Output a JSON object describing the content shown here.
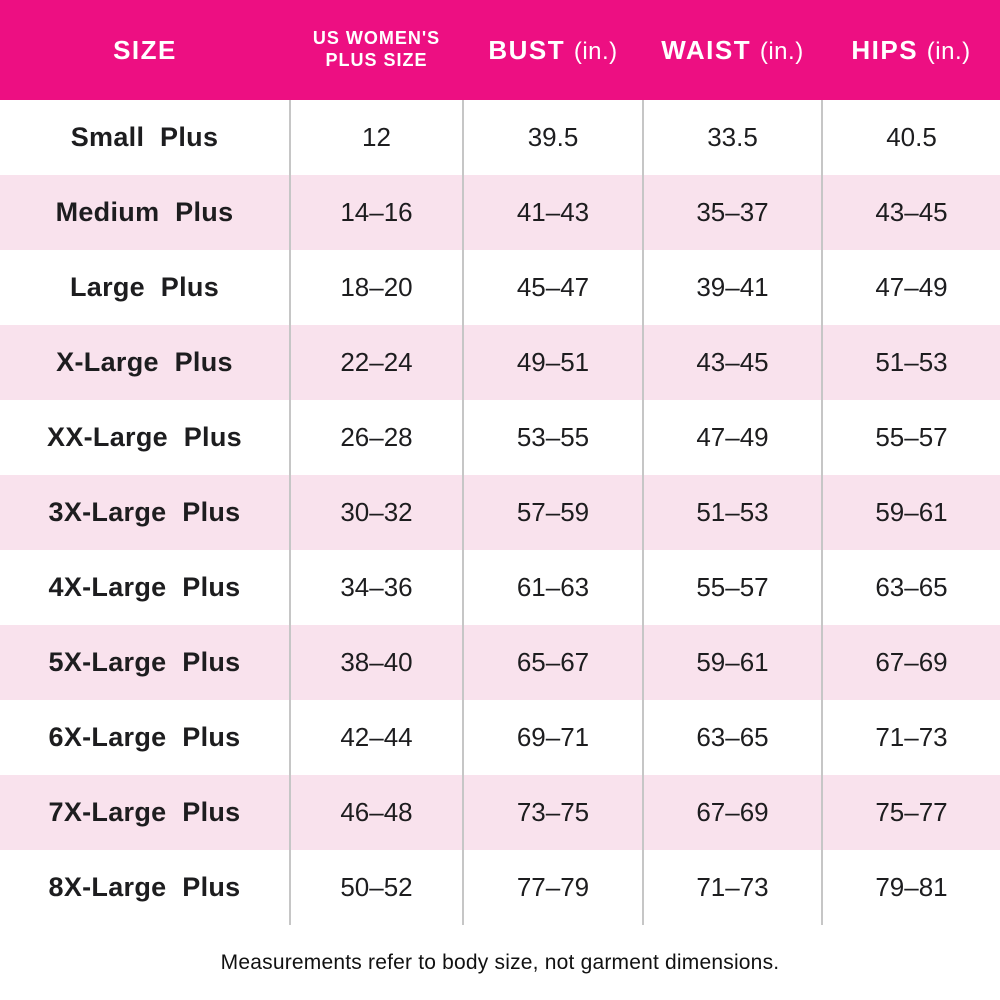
{
  "colors": {
    "header_bg": "#ED0F82",
    "header_text": "#FFFFFF",
    "row_bg": "#FFFFFF",
    "row_alt_bg": "#F9E2ED",
    "divider": "#C6C6C6",
    "text": "#1D1D1F"
  },
  "header": {
    "columns": [
      {
        "label": "SIZE",
        "unit": ""
      },
      {
        "label": "US WOMEN'S PLUS SIZE",
        "line1": "US WOMEN'S",
        "line2": "PLUS SIZE",
        "unit": ""
      },
      {
        "label": "BUST",
        "unit": "(in.)"
      },
      {
        "label": "WAIST",
        "unit": "(in.)"
      },
      {
        "label": "HIPS",
        "unit": "(in.)"
      }
    ]
  },
  "rows": [
    [
      "Small Plus",
      "12",
      "39.5",
      "33.5",
      "40.5"
    ],
    [
      "Medium Plus",
      "14–16",
      "41–43",
      "35–37",
      "43–45"
    ],
    [
      "Large Plus",
      "18–20",
      "45–47",
      "39–41",
      "47–49"
    ],
    [
      "X-Large Plus",
      "22–24",
      "49–51",
      "43–45",
      "51–53"
    ],
    [
      "XX-Large Plus",
      "26–28",
      "53–55",
      "47–49",
      "55–57"
    ],
    [
      "3X-Large Plus",
      "30–32",
      "57–59",
      "51–53",
      "59–61"
    ],
    [
      "4X-Large Plus",
      "34–36",
      "61–63",
      "55–57",
      "63–65"
    ],
    [
      "5X-Large Plus",
      "38–40",
      "65–67",
      "59–61",
      "67–69"
    ],
    [
      "6X-Large Plus",
      "42–44",
      "69–71",
      "63–65",
      "71–73"
    ],
    [
      "7X-Large Plus",
      "46–48",
      "73–75",
      "67–69",
      "75–77"
    ],
    [
      "8X-Large Plus",
      "50–52",
      "77–79",
      "71–73",
      "79–81"
    ]
  ],
  "footer": {
    "note": "Measurements refer to body size, not garment dimensions."
  }
}
